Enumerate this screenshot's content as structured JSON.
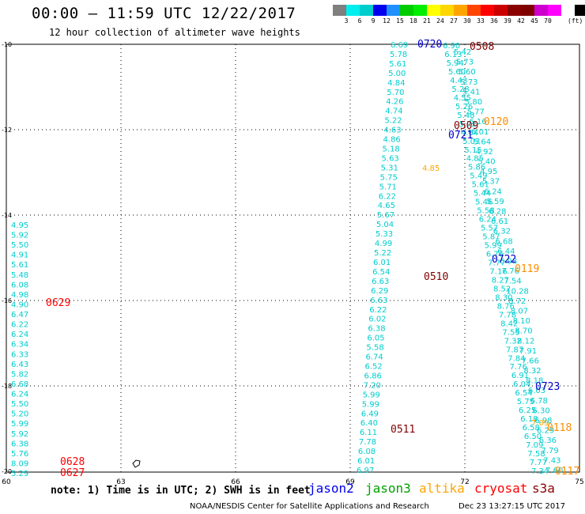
{
  "header": {
    "title": "00:00 – 11:59 UTC 12/22/2017",
    "subtitle": "12 hour collection of altimeter wave heights"
  },
  "legend": {
    "colors": [
      "#7f7f7f",
      "#00eeee",
      "#00cdcd",
      "#0000ee",
      "#1e90ff",
      "#00cd00",
      "#00ee00",
      "#ffff00",
      "#ffd700",
      "#ffa500",
      "#ff4500",
      "#ff0000",
      "#cd0000",
      "#8b0000",
      "#800000",
      "#cd00cd",
      "#ff00ff",
      "#ffffff",
      "#000000"
    ],
    "labels": [
      "3",
      "6",
      "9",
      "12",
      "15",
      "18",
      "21",
      "24",
      "27",
      "30",
      "33",
      "36",
      "39",
      "42",
      "45",
      "70"
    ],
    "unit": "(ft)"
  },
  "axes": {
    "x_labels": [
      "60",
      "63",
      "66",
      "69",
      "72",
      "75"
    ],
    "y_labels": [
      "-10",
      "-12",
      "-14",
      "-16",
      "-18",
      "-20"
    ]
  },
  "tracks": {
    "left": [
      "4.95",
      "5.92",
      "5.50",
      "4.91",
      "5.61",
      "5.48",
      "6.08",
      "4.98",
      "4.90",
      "6.47",
      "6.22",
      "6.24",
      "6.34",
      "6.33",
      "6.43",
      "5.82",
      "6.68",
      "6.24",
      "5.50",
      "5.20",
      "5.99",
      "5.92",
      "6.38",
      "5.76",
      "8.09",
      "5.29"
    ],
    "t0510": [
      "6.69",
      "5.78",
      "5.61",
      "5.00",
      "4.84",
      "5.70",
      "4.26",
      "4.74",
      "5.22",
      "4.63",
      "4.86",
      "5.18",
      "5.63",
      "5.31",
      "5.75",
      "5.71",
      "6.22",
      "4.65",
      "5.67",
      "5.04",
      "5.33",
      "4.99",
      "5.22",
      "6.01",
      "6.54",
      "6.63",
      "6.29",
      "6.63",
      "6.22",
      "6.02",
      "6.38",
      "6.05",
      "5.58",
      "6.74",
      "6.52",
      "6.86",
      "7.20",
      "5.99",
      "5.99",
      "6.49",
      "6.40",
      "6.11",
      "7.78",
      "6.08",
      "6.01",
      "6.97"
    ],
    "t0508": [
      "6.90",
      "6.13",
      "5.94",
      "5.60",
      "4.43",
      "5.28",
      "4.55",
      "5.26",
      "5.48",
      "5.72",
      "4.64",
      "5.03",
      "5.15",
      "4.85",
      "5.86",
      "5.49",
      "5.61",
      "5.44",
      "5.46",
      "5.58",
      "6.24",
      "5.57",
      "5.87",
      "5.99",
      "6.76",
      "7.77",
      "7.16",
      "8.27",
      "8.52",
      "8.30",
      "8.76",
      "7.78",
      "8.42",
      "7.55",
      "7.32",
      "7.87",
      "7.84",
      "7.76",
      "6.91",
      "6.04",
      "6.54",
      "5.75",
      "6.25",
      "6.18",
      "6.58",
      "6.50",
      "7.09",
      "7.58",
      "7.77",
      "7.34"
    ],
    "t0509": [
      "5.42",
      "5.73",
      "5.60",
      "5.73",
      "5.41",
      "5.80",
      "5.77",
      "6.16",
      "6.01",
      "5.64",
      "4.92",
      "5.40",
      "4.95",
      "5.37",
      "6.24",
      "5.59",
      "6.28",
      "6.61",
      "6.32",
      "6.68",
      "6.44",
      "6.98",
      "7.76",
      "7.54",
      "10.28",
      "8.72",
      "8.07",
      "8.10",
      "8.70",
      "8.12",
      "7.91",
      "7.66",
      "8.32",
      "8.18",
      "6.03",
      "6.78",
      "6.30",
      "6.98",
      "6.29",
      "6.36",
      "7.79",
      "7.43",
      "7.60"
    ]
  },
  "tracks_orange": [
    "4.85",
    "7.09"
  ],
  "markers": [
    {
      "text": "0720",
      "color": "#0000cd"
    },
    {
      "text": "0508",
      "color": "#800000"
    },
    {
      "text": "0120",
      "color": "#ff8c00"
    },
    {
      "text": "0509",
      "color": "#800000"
    },
    {
      "text": "0721",
      "color": "#0000cd"
    },
    {
      "text": "0722",
      "color": "#0000cd"
    },
    {
      "text": "0119",
      "color": "#ff8c00"
    },
    {
      "text": "0510",
      "color": "#800000"
    },
    {
      "text": "0629",
      "color": "#ff0000"
    },
    {
      "text": "0723",
      "color": "#0000cd"
    },
    {
      "text": "0511",
      "color": "#800000"
    },
    {
      "text": "0118",
      "color": "#ff8c00"
    },
    {
      "text": "0628",
      "color": "#ff0000"
    },
    {
      "text": "0627",
      "color": "#ff0000"
    },
    {
      "text": "0117",
      "color": "#ff8c00"
    }
  ],
  "footer": {
    "note": "note: 1) Time is in UTC; 2) SWH is in feet",
    "satellites": [
      {
        "name": "jason2",
        "color": "#0000ee"
      },
      {
        "name": "jason3",
        "color": "#00a000"
      },
      {
        "name": "altika",
        "color": "#ffa500"
      },
      {
        "name": "cryosat",
        "color": "#ff0000"
      },
      {
        "name": "s3a",
        "color": "#8b0000"
      }
    ],
    "credit": "NOAA/NESDIS Center for Satellite Applications and Research",
    "timestamp": "Dec 23 13:27:15 UTC 2017"
  },
  "theme": {
    "value_color": "#00cdcd"
  }
}
